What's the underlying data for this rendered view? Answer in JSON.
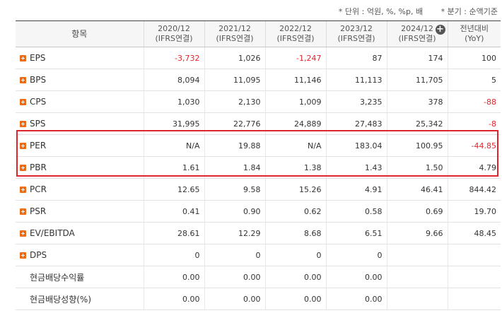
{
  "notes": {
    "unit": "* 단위 : 억원, %, %p, 배",
    "quarter": "* 분기 : 순액기준"
  },
  "columns": [
    {
      "label": "항목"
    },
    {
      "line1": "2020/12",
      "line2": "(IFRS연결)"
    },
    {
      "line1": "2021/12",
      "line2": "(IFRS연결)"
    },
    {
      "line1": "2022/12",
      "line2": "(IFRS연결)"
    },
    {
      "line1": "2023/12",
      "line2": "(IFRS연결)"
    },
    {
      "line1": "2024/12",
      "line2": "(IFRS연결)"
    },
    {
      "line1": "전년대비",
      "line2": "(YoY)"
    }
  ],
  "rows": [
    {
      "label": "EPS",
      "expand": true,
      "values": [
        "-3,732",
        "1,026",
        "-1,247",
        "87",
        "174",
        "100"
      ]
    },
    {
      "label": "BPS",
      "expand": true,
      "values": [
        "8,094",
        "11,095",
        "11,146",
        "11,113",
        "11,705",
        "5"
      ]
    },
    {
      "label": "CPS",
      "expand": true,
      "values": [
        "1,030",
        "2,130",
        "1,009",
        "3,235",
        "378",
        "-88"
      ]
    },
    {
      "label": "SPS",
      "expand": true,
      "values": [
        "31,995",
        "22,776",
        "24,889",
        "27,483",
        "25,342",
        "-8"
      ]
    },
    {
      "label": "PER",
      "expand": true,
      "values": [
        "N/A",
        "19.88",
        "N/A",
        "183.04",
        "100.95",
        "-44.85"
      ]
    },
    {
      "label": "PBR",
      "expand": true,
      "values": [
        "1.61",
        "1.84",
        "1.38",
        "1.43",
        "1.50",
        "4.79"
      ]
    },
    {
      "label": "PCR",
      "expand": true,
      "values": [
        "12.65",
        "9.58",
        "15.26",
        "4.91",
        "46.41",
        "844.42"
      ]
    },
    {
      "label": "PSR",
      "expand": true,
      "values": [
        "0.41",
        "0.90",
        "0.62",
        "0.58",
        "0.69",
        "19.70"
      ]
    },
    {
      "label": "EV/EBITDA",
      "expand": true,
      "values": [
        "28.61",
        "12.29",
        "8.68",
        "6.51",
        "9.66",
        "48.45"
      ]
    },
    {
      "label": "DPS",
      "expand": true,
      "values": [
        "0",
        "0",
        "0",
        "0",
        "",
        ""
      ]
    },
    {
      "label": "현금배당수익률",
      "expand": false,
      "values": [
        "0.00",
        "0.00",
        "0.00",
        "0.00",
        "",
        ""
      ]
    },
    {
      "label": "현금배당성향(%)",
      "expand": false,
      "values": [
        "0.00",
        "0.00",
        "0.00",
        "0.00",
        "",
        ""
      ]
    }
  ],
  "colors": {
    "negative": "#e0262c",
    "highlight": "#e0262c",
    "expand": "#f06a10"
  }
}
